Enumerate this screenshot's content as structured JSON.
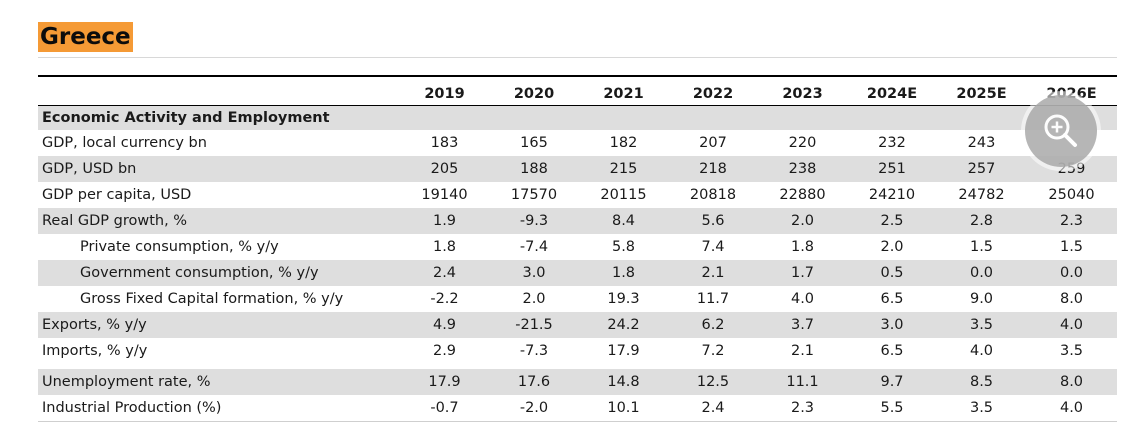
{
  "title": "Greece",
  "header": {
    "label": "",
    "years": [
      "2019",
      "2020",
      "2021",
      "2022",
      "2023",
      "2024E",
      "2025E",
      "2026E"
    ]
  },
  "section": {
    "title": "Economic Activity and Employment"
  },
  "rows": [
    {
      "label": "GDP, local currency bn",
      "values": [
        "183",
        "165",
        "182",
        "207",
        "220",
        "232",
        "243",
        ""
      ]
    },
    {
      "label": "GDP, USD bn",
      "values": [
        "205",
        "188",
        "215",
        "218",
        "238",
        "251",
        "257",
        "259"
      ]
    },
    {
      "label": "GDP per capita, USD",
      "values": [
        "19140",
        "17570",
        "20115",
        "20818",
        "22880",
        "24210",
        "24782",
        "25040"
      ]
    },
    {
      "label": "Real GDP growth, %",
      "values": [
        "1.9",
        "-9.3",
        "8.4",
        "5.6",
        "2.0",
        "2.5",
        "2.8",
        "2.3"
      ]
    },
    {
      "label": "Private consumption, % y/y",
      "values": [
        "1.8",
        "-7.4",
        "5.8",
        "7.4",
        "1.8",
        "2.0",
        "1.5",
        "1.5"
      ]
    },
    {
      "label": "Government consumption, % y/y",
      "values": [
        "2.4",
        "3.0",
        "1.8",
        "2.1",
        "1.7",
        "0.5",
        "0.0",
        "0.0"
      ]
    },
    {
      "label": "Gross Fixed Capital formation, % y/y",
      "values": [
        "-2.2",
        "2.0",
        "19.3",
        "11.7",
        "4.0",
        "6.5",
        "9.0",
        "8.0"
      ]
    },
    {
      "label": "Exports, % y/y",
      "values": [
        "4.9",
        "-21.5",
        "24.2",
        "6.2",
        "3.7",
        "3.0",
        "3.5",
        "4.0"
      ]
    },
    {
      "label": "Imports, % y/y",
      "values": [
        "2.9",
        "-7.3",
        "17.9",
        "7.2",
        "2.1",
        "6.5",
        "4.0",
        "3.5"
      ]
    },
    {
      "label": "Unemployment rate, %",
      "values": [
        "17.9",
        "17.6",
        "14.8",
        "12.5",
        "11.1",
        "9.7",
        "8.5",
        "8.0"
      ]
    },
    {
      "label": "Industrial Production (%)",
      "values": [
        "-0.7",
        "-2.0",
        "10.1",
        "2.4",
        "2.3",
        "5.5",
        "3.5",
        "4.0"
      ]
    }
  ],
  "zoom_button": {
    "icon": "zoom-in-icon"
  },
  "colors": {
    "title_highlight": "#f59a35",
    "row_shade": "#dedede",
    "zoom_button": "#b0b0b0"
  }
}
